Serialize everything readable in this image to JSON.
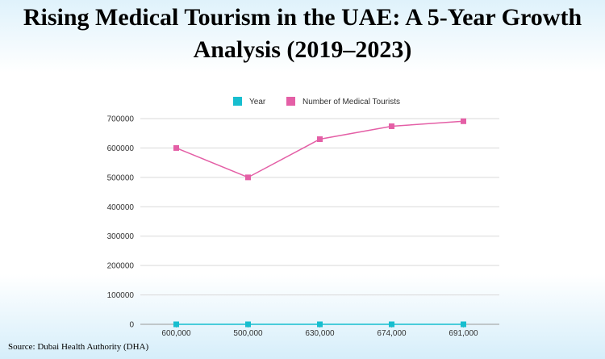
{
  "title_line1": "Rising Medical Tourism in the UAE: A 5-Year Growth",
  "title_line2": "Analysis (2019–2023)",
  "source": "Source: Dubai Health Authority (DHA)",
  "chart_data": {
    "type": "line",
    "categories": [
      "600,000",
      "500,000",
      "630,000",
      "674,000",
      "691,000"
    ],
    "series": [
      {
        "name": "Year",
        "values": [
          0,
          0,
          0,
          0,
          0
        ],
        "color": "#17becf"
      },
      {
        "name": "Number of Medical Tourists",
        "values": [
          600000,
          500000,
          630000,
          674000,
          691000
        ],
        "color": "#e45fa6"
      }
    ],
    "yticks": [
      "0",
      "100000",
      "200000",
      "300000",
      "400000",
      "500000",
      "600000",
      "700000"
    ],
    "ylim": [
      0,
      700000
    ],
    "grid": true,
    "legend": "top-center"
  }
}
